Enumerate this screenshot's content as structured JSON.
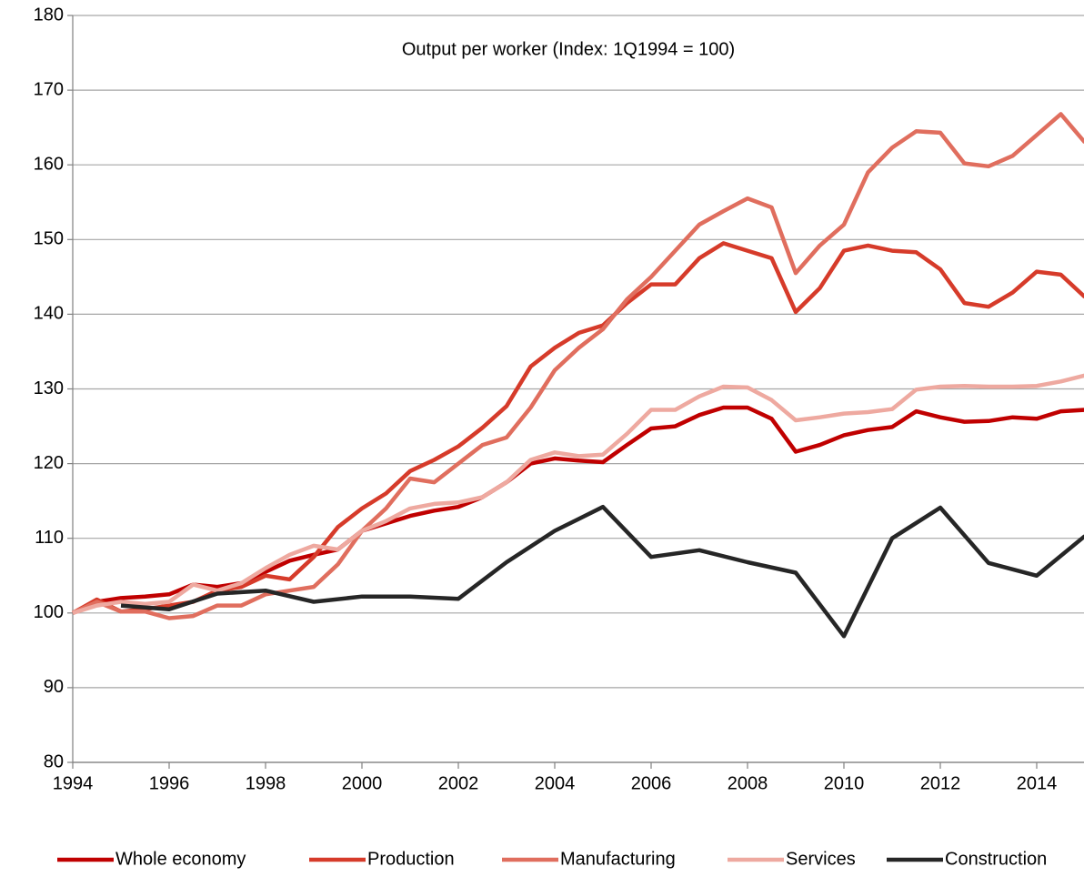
{
  "chart_data": {
    "type": "line",
    "title": "Output per worker (Index: 1Q1994  = 100)",
    "xlim": [
      1994,
      2015
    ],
    "xticks": [
      1994,
      1996,
      1998,
      2000,
      2002,
      2004,
      2006,
      2008,
      2010,
      2012,
      2014
    ],
    "ylim": [
      80,
      180
    ],
    "yticks": [
      80,
      90,
      100,
      110,
      120,
      130,
      140,
      150,
      160,
      170,
      180
    ],
    "grid": true,
    "legend": "bottom",
    "series": [
      {
        "name": "Whole economy",
        "color": "#c00000",
        "x": [
          1994,
          1994.5,
          1995,
          1995.5,
          1996,
          1996.5,
          1997,
          1997.5,
          1998,
          1998.5,
          1999,
          1999.5,
          2000,
          2000.5,
          2001,
          2001.5,
          2002,
          2002.5,
          2003,
          2003.5,
          2004,
          2004.5,
          2005,
          2005.5,
          2006,
          2006.5,
          2007,
          2007.5,
          2008,
          2008.5,
          2009,
          2009.5,
          2010,
          2010.5,
          2011,
          2011.5,
          2012,
          2012.5,
          2013,
          2013.5,
          2014,
          2014.5,
          2015
        ],
        "values": [
          100,
          101.5,
          102,
          102.2,
          102.5,
          103.8,
          103.5,
          104,
          105.5,
          107,
          107.8,
          108.5,
          111,
          112,
          113,
          113.7,
          114.2,
          115.5,
          117.5,
          120,
          120.7,
          120.4,
          120.2,
          122.5,
          124.7,
          125,
          126.5,
          127.5,
          127.5,
          126,
          121.6,
          122.5,
          123.8,
          124.5,
          124.9,
          127,
          126.2,
          125.6,
          125.7,
          126.2,
          126,
          127,
          127.2
        ]
      },
      {
        "name": "Production",
        "color": "#d63b2a",
        "x": [
          1994,
          1994.5,
          1995,
          1995.5,
          1996,
          1996.5,
          1997,
          1997.5,
          1998,
          1998.5,
          1999,
          1999.5,
          2000,
          2000.5,
          2001,
          2001.5,
          2002,
          2002.5,
          2003,
          2003.5,
          2004,
          2004.5,
          2005,
          2005.5,
          2006,
          2006.5,
          2007,
          2007.5,
          2008,
          2008.5,
          2009,
          2009.5,
          2010,
          2010.5,
          2011,
          2011.5,
          2012,
          2012.5,
          2013,
          2013.5,
          2014,
          2014.5,
          2015
        ],
        "values": [
          100,
          101.8,
          100.2,
          100.5,
          101,
          101.5,
          103,
          103.5,
          105,
          104.5,
          107.5,
          111.5,
          114,
          116,
          119,
          120.5,
          122.3,
          124.8,
          127.7,
          133,
          135.5,
          137.5,
          138.5,
          141.5,
          144,
          144,
          147.5,
          149.5,
          148.5,
          147.5,
          140.3,
          143.5,
          148.5,
          149.2,
          148.5,
          148.3,
          146,
          141.5,
          141,
          142.9,
          145.7,
          145.3,
          142.3
        ]
      },
      {
        "name": "Manufacturing",
        "color": "#e06e5e",
        "x": [
          1994,
          1994.5,
          1995,
          1995.5,
          1996,
          1996.5,
          1997,
          1997.5,
          1998,
          1998.5,
          1999,
          1999.5,
          2000,
          2000.5,
          2001,
          2001.5,
          2002,
          2002.5,
          2003,
          2003.5,
          2004,
          2004.5,
          2005,
          2005.5,
          2006,
          2006.5,
          2007,
          2007.5,
          2008,
          2008.5,
          2009,
          2009.5,
          2010,
          2010.5,
          2011,
          2011.5,
          2012,
          2012.5,
          2013,
          2013.5,
          2014,
          2014.5,
          2015
        ],
        "values": [
          100,
          101.5,
          100.2,
          100.2,
          99.3,
          99.6,
          101,
          101,
          102.5,
          103,
          103.5,
          106.5,
          111,
          114,
          118,
          117.5,
          120,
          122.5,
          123.5,
          127.5,
          132.5,
          135.5,
          138,
          142,
          145,
          148.5,
          152,
          153.8,
          155.5,
          154.3,
          145.5,
          149.2,
          152,
          159,
          162.3,
          164.5,
          164.3,
          160.2,
          159.8,
          161.2,
          164,
          166.8,
          163
        ]
      },
      {
        "name": "Services",
        "color": "#eea9a0",
        "x": [
          1994,
          1994.5,
          1995,
          1995.5,
          1996,
          1996.5,
          1997,
          1997.5,
          1998,
          1998.5,
          1999,
          1999.5,
          2000,
          2000.5,
          2001,
          2001.5,
          2002,
          2002.5,
          2003,
          2003.5,
          2004,
          2004.5,
          2005,
          2005.5,
          2006,
          2006.5,
          2007,
          2007.5,
          2008,
          2008.5,
          2009,
          2009.5,
          2010,
          2010.5,
          2011,
          2011.5,
          2012,
          2012.5,
          2013,
          2013.5,
          2014,
          2014.5,
          2015
        ],
        "values": [
          100,
          101,
          101.5,
          101.2,
          101.5,
          103.8,
          103,
          104,
          106,
          107.8,
          109,
          108.5,
          111,
          112.3,
          114,
          114.6,
          114.8,
          115.5,
          117.5,
          120.5,
          121.5,
          121,
          121.2,
          124,
          127.2,
          127.2,
          129,
          130.3,
          130.2,
          128.5,
          125.8,
          126.2,
          126.7,
          126.9,
          127.3,
          129.9,
          130.3,
          130.4,
          130.3,
          130.3,
          130.4,
          131,
          131.8
        ]
      },
      {
        "name": "Construction",
        "color": "#262626",
        "x": [
          1995,
          1996,
          1997,
          1998,
          1999,
          2000,
          2001,
          2002,
          2003,
          2004,
          2005,
          2006,
          2007,
          2008,
          2009,
          2010,
          2011,
          2012,
          2013,
          2014,
          2015
        ],
        "values": [
          101,
          100.5,
          102.6,
          103,
          101.5,
          102.2,
          102.2,
          101.9,
          106.8,
          111,
          114.2,
          107.5,
          108.4,
          106.8,
          105.4,
          96.9,
          110,
          114.1,
          106.7,
          105,
          110.3
        ]
      }
    ]
  }
}
